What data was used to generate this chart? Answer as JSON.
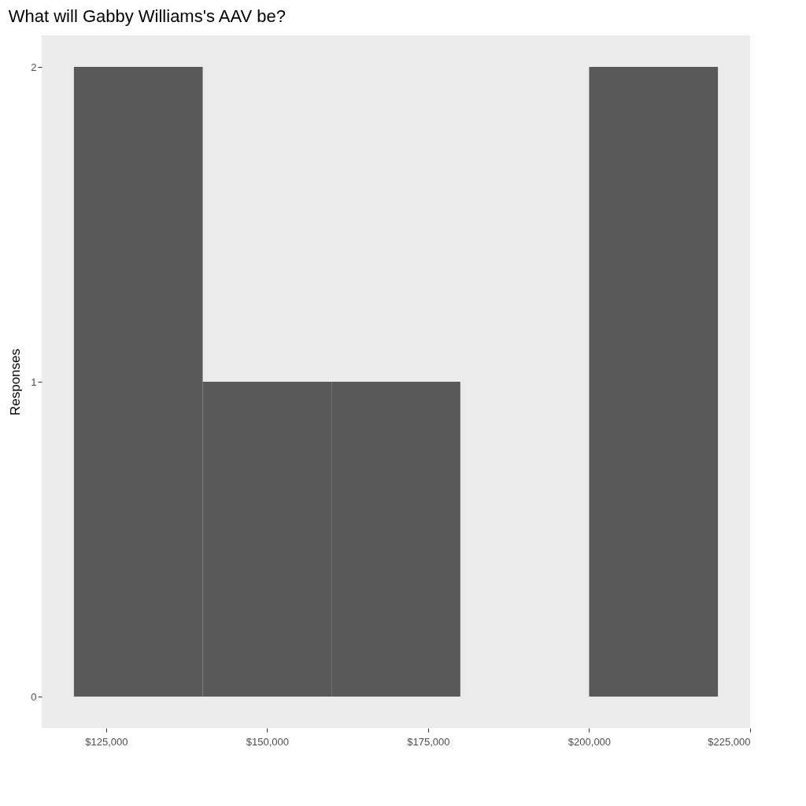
{
  "chart_data": {
    "type": "histogram",
    "title": "What will Gabby Williams's AAV be?",
    "ylabel": "Responses",
    "bins": [
      120000,
      140000,
      160000,
      180000,
      200000,
      220000
    ],
    "values": [
      2,
      1,
      1,
      0,
      2
    ],
    "color": "#595959",
    "xlim": [
      115000,
      225000
    ],
    "xticks": [
      {
        "value": 125000,
        "label": "$125,000"
      },
      {
        "value": 150000,
        "label": "$150,000"
      },
      {
        "value": 175000,
        "label": "$175,000"
      },
      {
        "value": 200000,
        "label": "$200,000"
      },
      {
        "value": 225000,
        "label": "$225,000"
      }
    ],
    "ylim": [
      -0.1,
      2.1
    ],
    "yticks": [
      0,
      1,
      2
    ],
    "grid": false
  }
}
